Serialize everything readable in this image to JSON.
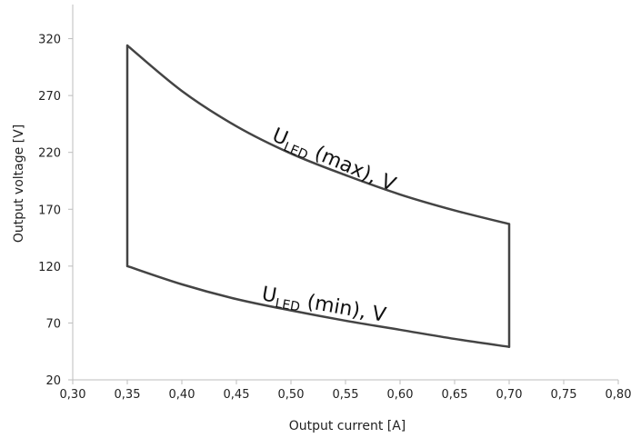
{
  "chart_data": {
    "type": "line",
    "xlabel": "Output current [A]",
    "ylabel": "Output voltage [V]",
    "xlim": [
      0.3,
      0.8
    ],
    "ylim": [
      20,
      350
    ],
    "xticks": [
      0.3,
      0.35,
      0.4,
      0.45,
      0.5,
      0.55,
      0.6,
      0.65,
      0.7,
      0.75,
      0.8
    ],
    "xtick_labels": [
      "0,30",
      "0,35",
      "0,40",
      "0,45",
      "0,50",
      "0,55",
      "0,60",
      "0,65",
      "0,70",
      "0,75",
      "0,80"
    ],
    "yticks": [
      20,
      70,
      120,
      170,
      220,
      270,
      320
    ],
    "ytick_labels": [
      "20",
      "70",
      "120",
      "170",
      "220",
      "270",
      "320"
    ],
    "grid": false,
    "series": [
      {
        "key": "max",
        "x": [
          0.35,
          0.4,
          0.45,
          0.5,
          0.55,
          0.6,
          0.65,
          0.7
        ],
        "y": [
          314,
          274,
          243,
          219,
          200,
          183,
          169,
          157
        ]
      },
      {
        "key": "min",
        "x": [
          0.35,
          0.4,
          0.45,
          0.5,
          0.55,
          0.6,
          0.65,
          0.7
        ],
        "y": [
          120,
          104,
          91,
          81,
          72,
          64,
          56,
          49
        ]
      }
    ],
    "boundaries": [
      {
        "x": 0.35,
        "y": [
          120,
          314
        ]
      },
      {
        "x": 0.7,
        "y": [
          49,
          157
        ]
      }
    ],
    "annotations": [
      {
        "main": "U",
        "sub": "LED",
        "rest": " (max), V"
      },
      {
        "main": "U",
        "sub": "LED",
        "rest": " (min), V"
      }
    ]
  }
}
